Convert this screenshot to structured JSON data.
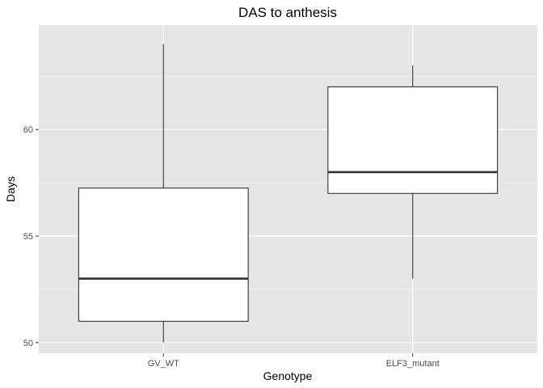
{
  "chart_data": {
    "type": "boxplot",
    "title": "DAS to anthesis",
    "xlabel": "Genotype",
    "ylabel": "Days",
    "categories": [
      "GV_WT",
      "ELF3_mutant"
    ],
    "boxes": [
      {
        "category": "GV_WT",
        "whisker_low": 50,
        "q1": 51,
        "median": 53,
        "q3": 57.25,
        "whisker_high": 64
      },
      {
        "category": "ELF3_mutant",
        "whisker_low": 53,
        "q1": 57,
        "median": 58,
        "q3": 62,
        "whisker_high": 63
      }
    ],
    "ylim": [
      49.5,
      64.9
    ],
    "y_ticks": [
      50,
      55,
      60
    ],
    "y_tick_labels": [
      "50",
      "55",
      "60"
    ],
    "grid": true,
    "colors": {
      "panel_background": "#e5e5e5",
      "grid_major": "#ffffff",
      "grid_minor": "#f2f2f2",
      "box_fill": "#ffffff",
      "box_stroke": "#333333",
      "tick_text": "#4d4d4d"
    }
  }
}
